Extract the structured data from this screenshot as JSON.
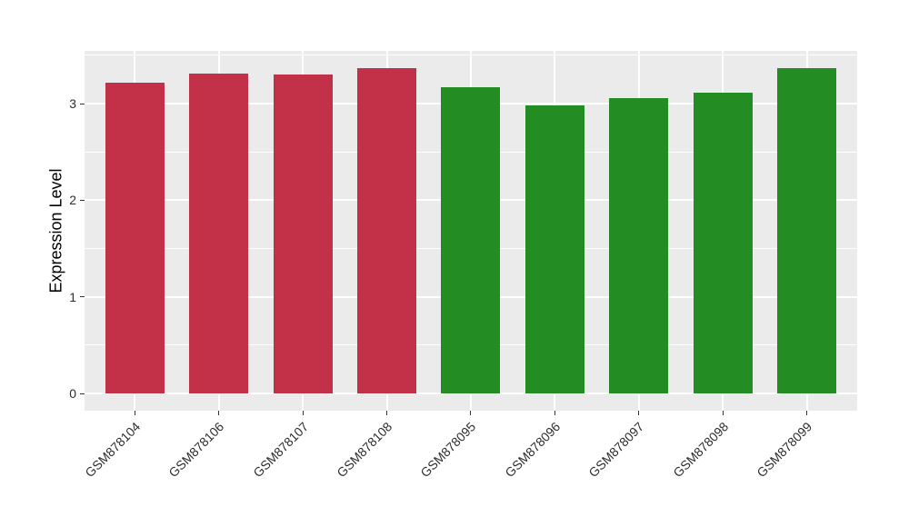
{
  "chart_data": {
    "type": "bar",
    "title": "",
    "xlabel": "",
    "ylabel": "Expression Level",
    "categories": [
      "GSM878104",
      "GSM878106",
      "GSM878107",
      "GSM878108",
      "GSM878095",
      "GSM878096",
      "GSM878097",
      "GSM878098",
      "GSM878099"
    ],
    "values": [
      3.22,
      3.31,
      3.3,
      3.37,
      3.17,
      2.98,
      3.06,
      3.11,
      3.37
    ],
    "bar_colors": [
      "#C23148",
      "#C23148",
      "#C23148",
      "#C23148",
      "#238C23",
      "#238C23",
      "#238C23",
      "#238C23",
      "#238C23"
    ],
    "yticks": [
      0,
      1,
      2,
      3
    ],
    "ytick_labels": [
      "0",
      "1",
      "2",
      "3"
    ],
    "minor_yticks": [
      0.5,
      1.5,
      2.5,
      3.5
    ],
    "ylim": [
      -0.18,
      3.55
    ],
    "grid": true,
    "legend": "none",
    "colors": {
      "background": "#FFFFFF",
      "panel_bg": "#EBEBEB",
      "grid_major": "#FFFFFF",
      "grid_minor": "#FFFFFF",
      "tick_mark": "#333333",
      "axis_text": "#2E2E2E",
      "axis_title": "#000000",
      "red_bars": "#C23148",
      "green_bars": "#238C23"
    }
  }
}
